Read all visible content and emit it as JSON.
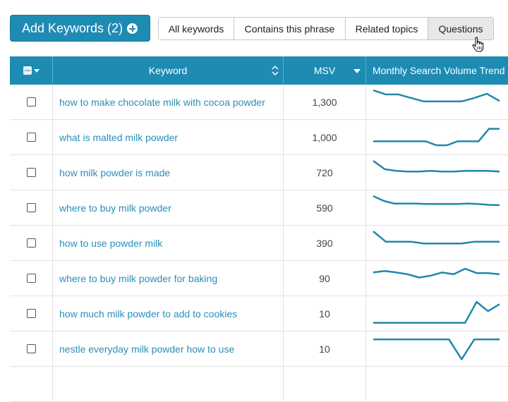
{
  "toolbar": {
    "add_keywords_label": "Add Keywords (2)",
    "filters": [
      {
        "label": "All keywords",
        "active": false
      },
      {
        "label": "Contains this phrase",
        "active": false
      },
      {
        "label": "Related topics",
        "active": false
      },
      {
        "label": "Questions",
        "active": true
      }
    ]
  },
  "table": {
    "headers": {
      "keyword": "Keyword",
      "msv": "MSV",
      "trend": "Monthly Search Volume Trend"
    },
    "rows": [
      {
        "keyword": "how to make chocolate milk with cocoa powder",
        "msv": "1,300",
        "trend": [
          100,
          82,
          82,
          67,
          52,
          52,
          52,
          52,
          67,
          85,
          54
        ]
      },
      {
        "keyword": "what is malted milk powder",
        "msv": "1,000",
        "trend": [
          32,
          32,
          32,
          32,
          32,
          32,
          15,
          15,
          32,
          32,
          32,
          86,
          86
        ]
      },
      {
        "keyword": "how milk powder is made",
        "msv": "720",
        "trend": [
          100,
          64,
          57,
          54,
          54,
          57,
          54,
          54,
          57,
          57,
          57,
          54
        ]
      },
      {
        "keyword": "where to buy milk powder",
        "msv": "590",
        "trend": [
          100,
          79,
          68,
          68,
          68,
          66,
          66,
          66,
          66,
          68,
          66,
          62,
          61
        ]
      },
      {
        "keyword": "how to use powder milk",
        "msv": "390",
        "trend": [
          100,
          55,
          55,
          55,
          48,
          48,
          48,
          48,
          55,
          55,
          55
        ]
      },
      {
        "keyword": "where to buy milk powder for baking",
        "msv": "90",
        "trend": [
          75,
          81,
          75,
          67,
          53,
          61,
          75,
          67,
          91,
          72,
          72,
          67
        ]
      },
      {
        "keyword": "how much milk powder to add to cookies",
        "msv": "10",
        "trend": [
          10,
          10,
          10,
          10,
          10,
          10,
          10,
          10,
          10,
          100,
          60,
          90
        ]
      },
      {
        "keyword": "nestle everyday milk powder how to use",
        "msv": "10",
        "trend": [
          90,
          90,
          90,
          90,
          90,
          90,
          90,
          5,
          90,
          90,
          90
        ]
      }
    ],
    "colors": {
      "header_bg": "#1e8bb3",
      "link": "#2a8fb8",
      "trend_line": "#2187ad"
    }
  }
}
